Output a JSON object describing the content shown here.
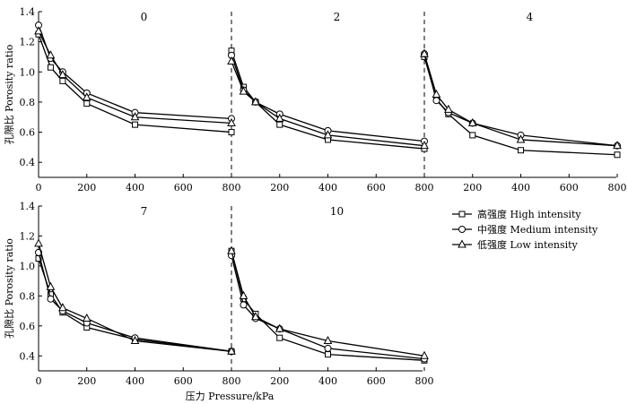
{
  "chart_data": {
    "type": "line",
    "ylabel": "孔隙比 Porosity ratio",
    "xlabel": "压力 Pressure/kPa",
    "x_ticks": [
      0,
      200,
      400,
      600,
      800
    ],
    "y_ticks": [
      0.4,
      0.6,
      0.8,
      1.0,
      1.2,
      1.4
    ],
    "ylim": [
      0.3,
      1.4
    ],
    "legend_placement": "right",
    "series_names": [
      "高强度 High intensity",
      "中强度 Medium intensity",
      "低强度 Low intensity"
    ],
    "series_markers": [
      "square",
      "circle",
      "triangle"
    ],
    "panels": [
      {
        "label": "0",
        "x": [
          0,
          50,
          100,
          200,
          400,
          800
        ],
        "series": [
          [
            1.25,
            1.03,
            0.94,
            0.79,
            0.65,
            0.6
          ],
          [
            1.31,
            1.09,
            1.0,
            0.86,
            0.73,
            0.69
          ],
          [
            1.27,
            1.11,
            0.98,
            0.83,
            0.7,
            0.66
          ]
        ]
      },
      {
        "label": "2",
        "x": [
          0,
          50,
          100,
          200,
          400,
          800
        ],
        "series": [
          [
            1.14,
            0.9,
            0.8,
            0.65,
            0.55,
            0.49
          ],
          [
            1.11,
            0.88,
            0.8,
            0.72,
            0.61,
            0.54
          ],
          [
            1.07,
            0.87,
            0.8,
            0.69,
            0.58,
            0.51
          ]
        ]
      },
      {
        "label": "4",
        "x": [
          0,
          50,
          100,
          200,
          400,
          800
        ],
        "series": [
          [
            1.1,
            0.82,
            0.72,
            0.58,
            0.48,
            0.45
          ],
          [
            1.12,
            0.81,
            0.73,
            0.66,
            0.58,
            0.51
          ],
          [
            1.12,
            0.85,
            0.75,
            0.66,
            0.55,
            0.51
          ]
        ]
      },
      {
        "label": "7",
        "x": [
          0,
          50,
          100,
          200,
          400,
          800
        ],
        "series": [
          [
            1.05,
            0.81,
            0.69,
            0.59,
            0.51,
            0.43
          ],
          [
            1.09,
            0.78,
            0.7,
            0.62,
            0.52,
            0.43
          ],
          [
            1.15,
            0.86,
            0.72,
            0.65,
            0.5,
            0.43
          ]
        ]
      },
      {
        "label": "10",
        "x": [
          0,
          50,
          100,
          200,
          400,
          800
        ],
        "series": [
          [
            1.1,
            0.78,
            0.68,
            0.52,
            0.41,
            0.37
          ],
          [
            1.07,
            0.74,
            0.65,
            0.58,
            0.45,
            0.38
          ],
          [
            1.1,
            0.8,
            0.66,
            0.58,
            0.5,
            0.4
          ]
        ]
      }
    ]
  }
}
